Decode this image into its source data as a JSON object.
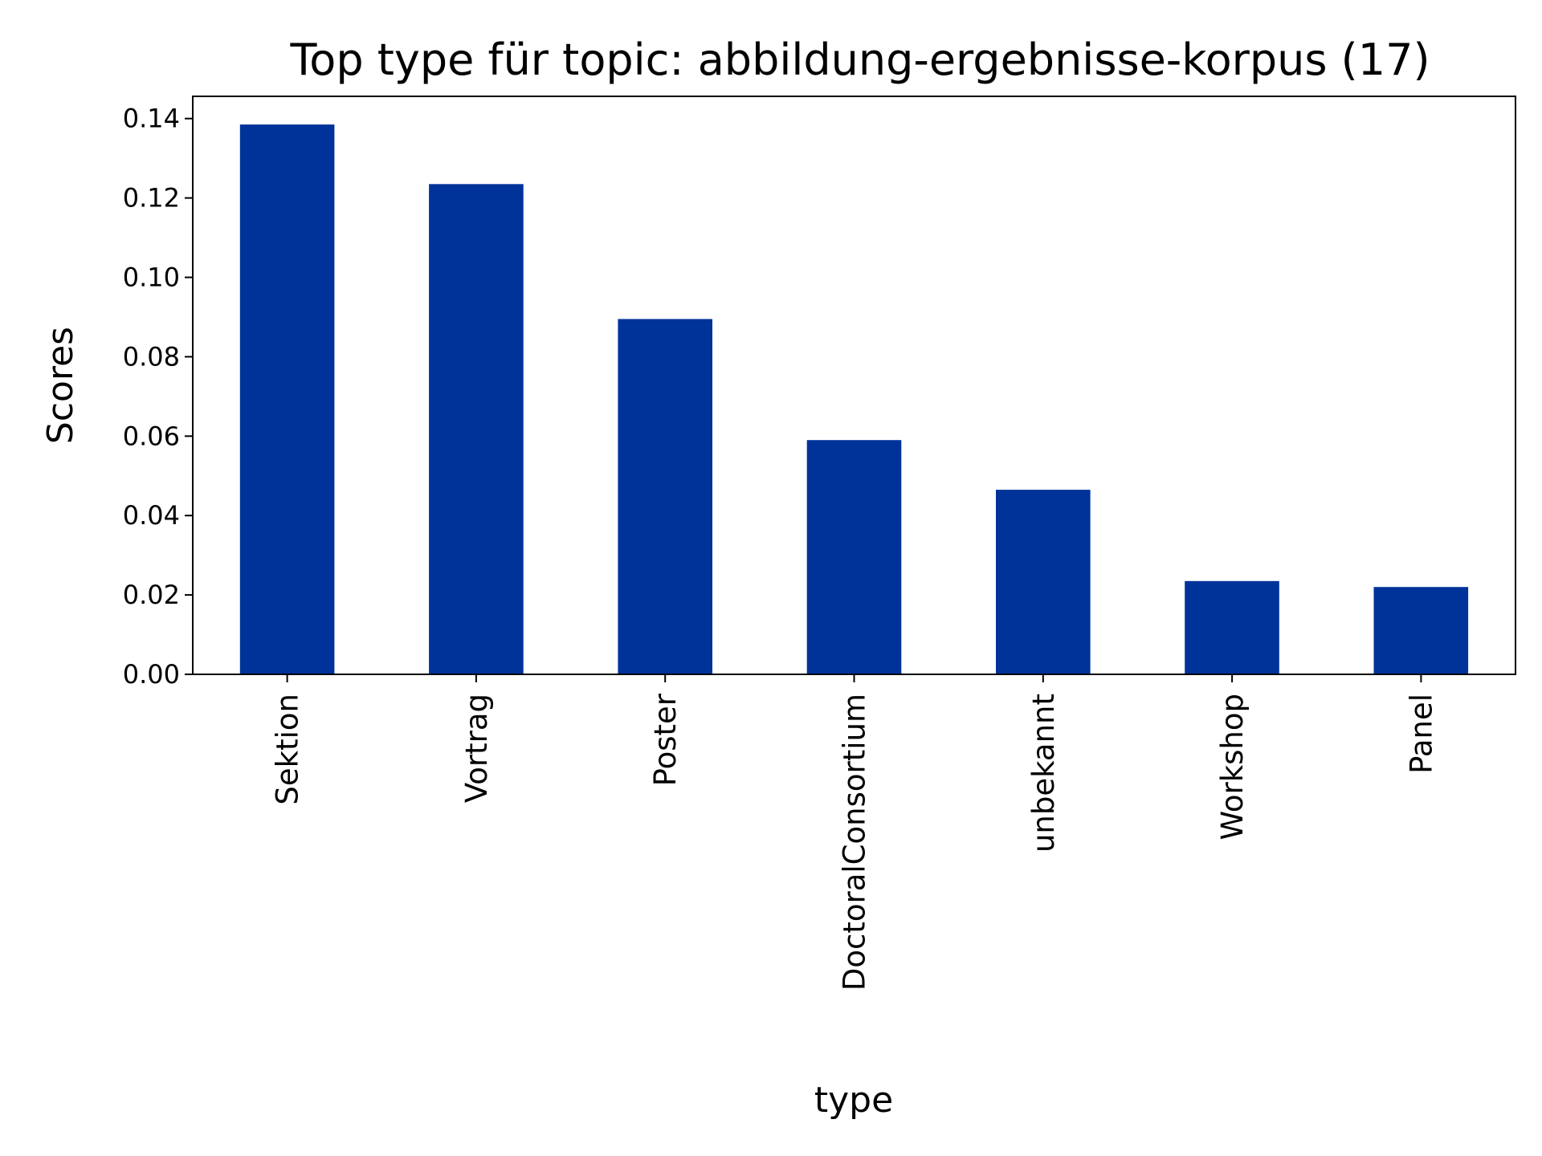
{
  "chart_data": {
    "type": "bar",
    "title": "Top type für topic: abbildung-ergebnisse-korpus (17)",
    "xlabel": "type",
    "ylabel": "Scores",
    "categories": [
      "Sektion",
      "Vortrag",
      "Poster",
      "DoctoralConsortium",
      "unbekannt",
      "Workshop",
      "Panel"
    ],
    "values": [
      0.1385,
      0.1235,
      0.0895,
      0.059,
      0.0465,
      0.0235,
      0.022
    ],
    "ylim": [
      0,
      0.1456
    ],
    "yticks": [
      0.0,
      0.02,
      0.04,
      0.06,
      0.08,
      0.1,
      0.12,
      0.14
    ],
    "ytick_labels": [
      "0.00",
      "0.02",
      "0.04",
      "0.06",
      "0.08",
      "0.10",
      "0.12",
      "0.14"
    ],
    "grid": false,
    "legend": false,
    "bar_color": "#003399"
  }
}
